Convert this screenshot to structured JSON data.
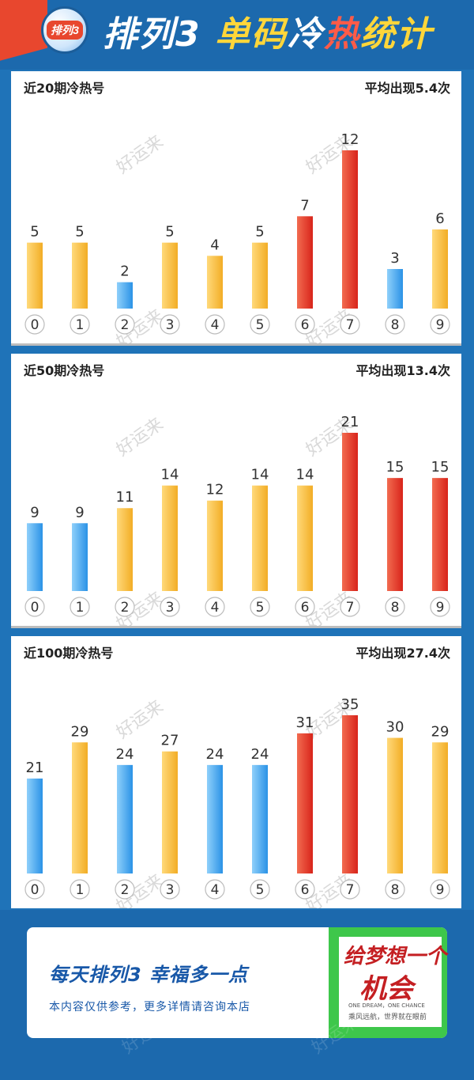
{
  "header": {
    "logo_text": "排列3",
    "title_parts": [
      "排列3 ",
      "单码",
      "冷",
      "热",
      "统计"
    ]
  },
  "watermark": "好运来",
  "colors": {
    "hot": "#e8402c",
    "warm": "#f5c043",
    "cold": "#4ba9ef"
  },
  "chart_data": [
    {
      "type": "bar",
      "title": "近20期冷热号",
      "subtitle": "平均出现5.4次",
      "categories": [
        "0",
        "1",
        "2",
        "3",
        "4",
        "5",
        "6",
        "7",
        "8",
        "9"
      ],
      "values": [
        5,
        5,
        2,
        5,
        4,
        5,
        7,
        12,
        3,
        6
      ],
      "status": [
        "warm",
        "warm",
        "cold",
        "warm",
        "warm",
        "warm",
        "hot",
        "hot",
        "cold",
        "warm"
      ],
      "ylim": [
        0,
        12
      ]
    },
    {
      "type": "bar",
      "title": "近50期冷热号",
      "subtitle": "平均出现13.4次",
      "categories": [
        "0",
        "1",
        "2",
        "3",
        "4",
        "5",
        "6",
        "7",
        "8",
        "9"
      ],
      "values": [
        9,
        9,
        11,
        14,
        12,
        14,
        14,
        21,
        15,
        15
      ],
      "status": [
        "cold",
        "cold",
        "warm",
        "warm",
        "warm",
        "warm",
        "warm",
        "hot",
        "hot",
        "hot"
      ],
      "ylim": [
        0,
        21
      ]
    },
    {
      "type": "bar",
      "title": "近100期冷热号",
      "subtitle": "平均出现27.4次",
      "categories": [
        "0",
        "1",
        "2",
        "3",
        "4",
        "5",
        "6",
        "7",
        "8",
        "9"
      ],
      "values": [
        21,
        29,
        24,
        27,
        24,
        24,
        31,
        35,
        30,
        29
      ],
      "status": [
        "cold",
        "warm",
        "cold",
        "warm",
        "cold",
        "cold",
        "hot",
        "hot",
        "warm",
        "warm"
      ],
      "ylim": [
        0,
        35
      ]
    }
  ],
  "footer": {
    "slogan": "每天排列3  幸福多一点",
    "disclaimer": "本内容仅供参考，更多详情请咨询本店",
    "dream_line1": "给梦想一个",
    "dream_line2": "机会",
    "dream_en": "ONE DREAM，ONE CHANCE",
    "dream_cn": "乘风远航，世界就在眼前"
  }
}
